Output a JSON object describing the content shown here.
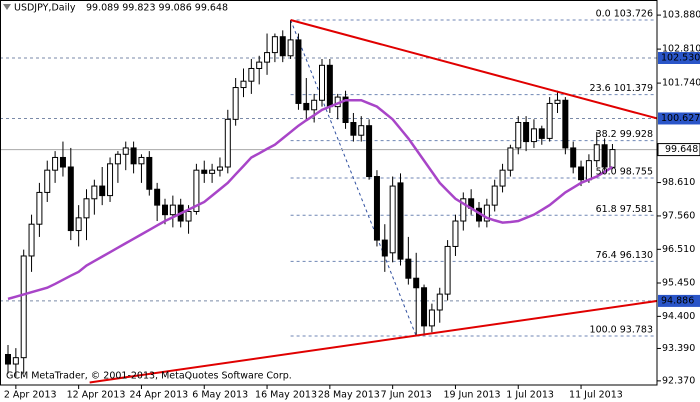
{
  "chart_data": {
    "type": "candlestick",
    "title": "USDJPY,Daily",
    "subtitle": "99.089 99.823 99.086 99.648",
    "copyright": "GCM MetaTrader, © 2001-2013, MetaQuotes Software Corp.",
    "categories": [
      null,
      "2 Apr 2013",
      null,
      null,
      null,
      null,
      null,
      null,
      null,
      "12 Apr 2013",
      null,
      null,
      null,
      null,
      null,
      null,
      null,
      "24 Apr 2013",
      null,
      null,
      null,
      null,
      null,
      null,
      null,
      "6 May 2013",
      null,
      null,
      null,
      null,
      null,
      null,
      null,
      "16 May 2013",
      null,
      null,
      null,
      null,
      null,
      null,
      null,
      "28 May 2013",
      null,
      null,
      null,
      null,
      null,
      null,
      null,
      "7 Jun 2013",
      null,
      null,
      null,
      null,
      null,
      null,
      null,
      "19 Jun 2013",
      null,
      null,
      null,
      null,
      null,
      null,
      null,
      "1 Jul 2013",
      null,
      null,
      null,
      null,
      null,
      null,
      null,
      "11 Jul 2013",
      null,
      null,
      null,
      null
    ],
    "open": [
      93.2,
      92.9,
      93.1,
      96.3,
      97.3,
      98.3,
      99.0,
      99.4,
      99.1,
      97.1,
      97.5,
      98.1,
      98.5,
      98.2,
      99.2,
      99.5,
      99.7,
      99.2,
      99.4,
      98.4,
      97.9,
      97.6,
      97.9,
      97.4,
      97.7,
      99.0,
      98.9,
      99.0,
      99.1,
      100.6,
      101.6,
      101.8,
      102.2,
      102.4,
      102.7,
      103.2,
      102.6,
      103.1,
      101.1,
      100.9,
      101.2,
      102.3,
      101.0,
      101.3,
      100.5,
      100.1,
      100.4,
      98.8,
      96.8,
      96.4,
      98.6,
      96.2,
      95.6,
      95.3,
      94.1,
      94.6,
      95.1,
      96.6,
      97.4,
      98.1,
      97.8,
      97.4,
      97.9,
      98.5,
      99.0,
      99.7,
      100.5,
      99.9,
      100.3,
      100.0,
      101.1,
      101.2,
      99.7,
      99.1,
      98.7,
      99.3,
      99.8,
      99.089
    ],
    "high": [
      93.5,
      93.4,
      96.5,
      97.6,
      98.6,
      99.3,
      99.6,
      99.9,
      99.7,
      97.9,
      98.4,
      98.7,
      99.1,
      99.4,
      99.6,
      99.9,
      99.9,
      99.5,
      99.6,
      98.6,
      98.1,
      98.2,
      98.1,
      97.9,
      99.2,
      99.3,
      99.2,
      99.4,
      100.9,
      101.9,
      102.2,
      102.5,
      102.6,
      103.3,
      103.3,
      103.4,
      103.726,
      103.3,
      101.9,
      101.4,
      102.5,
      102.5,
      101.4,
      101.5,
      100.8,
      100.7,
      100.6,
      99.0,
      97.3,
      98.8,
      98.9,
      96.9,
      96.4,
      95.4,
      94.8,
      95.3,
      96.8,
      97.6,
      98.3,
      98.4,
      98.0,
      98.1,
      98.7,
      99.2,
      99.8,
      100.7,
      100.7,
      100.6,
      100.4,
      101.3,
      101.5,
      101.3,
      99.9,
      99.3,
      99.5,
      100.2,
      100.0,
      99.823
    ],
    "low": [
      92.6,
      92.5,
      92.6,
      95.8,
      96.9,
      98.0,
      98.6,
      98.8,
      96.8,
      96.6,
      96.8,
      97.6,
      97.9,
      98.0,
      98.6,
      99.0,
      98.9,
      98.6,
      98.2,
      97.4,
      97.3,
      97.2,
      97.2,
      97.0,
      97.6,
      98.6,
      98.6,
      98.8,
      98.9,
      100.4,
      101.3,
      101.4,
      101.7,
      102.0,
      102.4,
      102.4,
      102.5,
      100.9,
      100.6,
      100.5,
      101.0,
      100.8,
      100.6,
      100.3,
      99.9,
      99.9,
      98.7,
      96.6,
      95.8,
      96.1,
      96.0,
      95.4,
      93.783,
      93.8,
      93.9,
      94.2,
      94.9,
      96.3,
      97.1,
      97.6,
      97.2,
      97.2,
      97.7,
      98.3,
      98.8,
      99.5,
      99.6,
      99.7,
      99.8,
      99.9,
      100.8,
      99.5,
      98.9,
      98.5,
      98.6,
      99.1,
      98.9,
      99.086
    ],
    "close": [
      92.9,
      93.1,
      96.3,
      97.3,
      98.3,
      99.0,
      99.4,
      99.1,
      97.1,
      97.5,
      98.1,
      98.5,
      98.2,
      99.2,
      99.5,
      99.7,
      99.2,
      99.4,
      98.4,
      97.9,
      97.6,
      97.9,
      97.4,
      97.7,
      99.0,
      98.9,
      99.0,
      99.1,
      100.6,
      101.6,
      101.8,
      102.2,
      102.4,
      102.7,
      103.2,
      102.6,
      103.1,
      101.1,
      100.9,
      101.2,
      102.3,
      101.0,
      101.3,
      100.5,
      100.1,
      100.4,
      98.8,
      96.8,
      96.3,
      98.5,
      96.2,
      95.6,
      95.3,
      94.1,
      94.6,
      95.1,
      96.6,
      97.4,
      98.1,
      97.8,
      97.4,
      97.9,
      98.5,
      99.0,
      99.7,
      100.5,
      99.9,
      100.3,
      100.0,
      101.1,
      101.2,
      99.7,
      99.1,
      98.7,
      99.3,
      99.8,
      99.1,
      99.648
    ],
    "moving_average": {
      "color": "#a845c8",
      "values": [
        94.95,
        95.02,
        95.09,
        95.16,
        95.23,
        95.3,
        95.42,
        95.55,
        95.68,
        95.8,
        96.0,
        96.14,
        96.28,
        96.42,
        96.56,
        96.7,
        96.84,
        96.98,
        97.12,
        97.26,
        97.4,
        97.52,
        97.64,
        97.76,
        97.88,
        98.0,
        98.2,
        98.4,
        98.6,
        98.87,
        99.13,
        99.4,
        99.53,
        99.67,
        99.8,
        100.0,
        100.2,
        100.4,
        100.57,
        100.73,
        100.9,
        101.0,
        101.1,
        101.2,
        101.2,
        101.2,
        101.1,
        101.0,
        100.8,
        100.6,
        100.3,
        100.0,
        99.65,
        99.3,
        98.95,
        98.6,
        98.35,
        98.1,
        97.95,
        97.8,
        97.65,
        97.5,
        97.42,
        97.35,
        97.37,
        97.4,
        97.5,
        97.6,
        97.75,
        97.9,
        98.1,
        98.3,
        98.45,
        98.6,
        98.7,
        98.8,
        98.95,
        99.1
      ]
    },
    "ylim": [
      92.24,
      104.355
    ],
    "yticks": [
      {
        "value": 103.88,
        "label": "103.880"
      },
      {
        "value": 102.81,
        "label": "102.810"
      },
      {
        "value": 101.74,
        "label": "101.740"
      },
      {
        "value": 98.61,
        "label": "98.610"
      },
      {
        "value": 97.56,
        "label": "97.560"
      },
      {
        "value": 96.51,
        "label": "96.510"
      },
      {
        "value": 95.45,
        "label": "95.450"
      },
      {
        "value": 94.4,
        "label": "94.400"
      },
      {
        "value": 93.39,
        "label": "93.390"
      },
      {
        "value": 92.37,
        "label": "92.370"
      }
    ],
    "levels": [
      {
        "value": 102.53,
        "label": "102.530"
      },
      {
        "value": 100.627,
        "label": "100.627"
      },
      {
        "value": 94.886,
        "label": "94.886"
      }
    ],
    "level_color": "#2a55c8",
    "last_price": 99.648,
    "trendlines": [
      {
        "color": "#e00000",
        "x": [
          36,
          82.7
        ],
        "y": [
          103.726,
          100.627
        ]
      },
      {
        "color": "#e00000",
        "x": [
          10.4,
          82.7
        ],
        "y": [
          92.32,
          94.886
        ]
      }
    ],
    "fibonacci": {
      "color": "#6f86b4",
      "x": [
        36,
        52
      ],
      "levels": [
        {
          "value": 103.726,
          "label": "0.0 103.726"
        },
        {
          "value": 101.379,
          "label": "23.6 101.379"
        },
        {
          "value": 99.928,
          "label": "38.2 99.928"
        },
        {
          "value": 98.755,
          "label": "50.0 98.755"
        },
        {
          "value": 97.581,
          "label": "61.8 97.581"
        },
        {
          "value": 96.13,
          "label": "76.4 96.130"
        },
        {
          "value": 93.783,
          "label": "100.0 93.783"
        }
      ]
    }
  }
}
